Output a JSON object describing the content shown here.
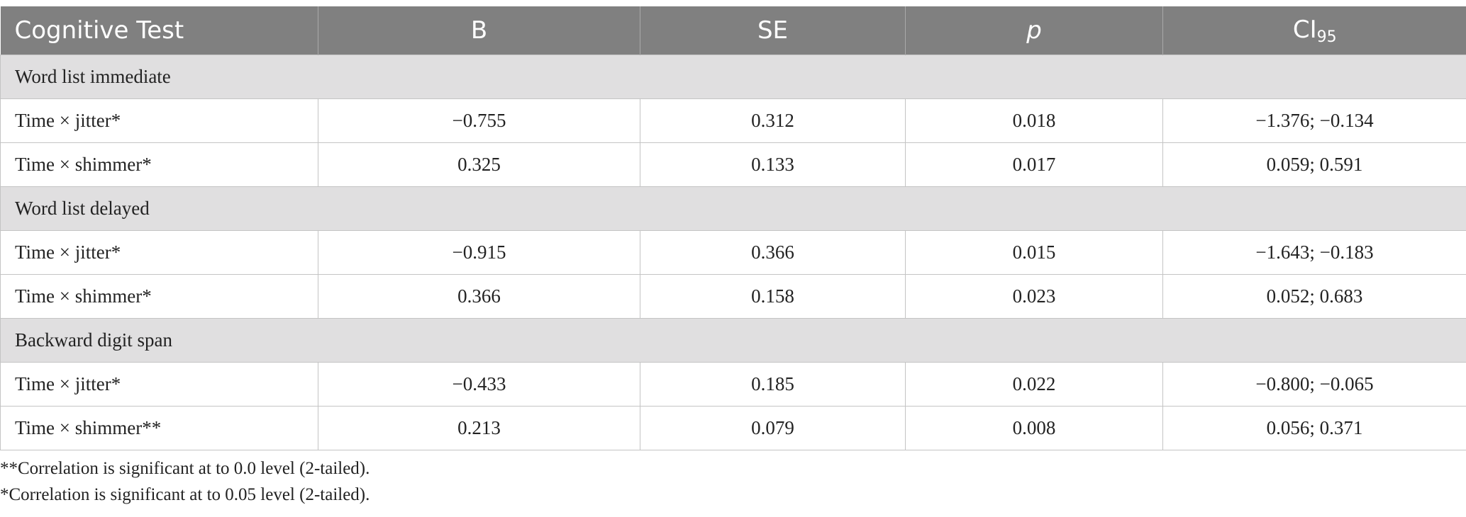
{
  "table": {
    "header": [
      "Cognitive Test",
      "B",
      "SE",
      "p",
      {
        "text": "CI",
        "sub": "95"
      }
    ],
    "groups": [
      {
        "title": "Word list immediate",
        "rows": [
          [
            "Time × jitter*",
            "−0.755",
            "0.312",
            "0.018",
            "−1.376; −0.134"
          ],
          [
            "Time × shimmer*",
            "0.325",
            "0.133",
            "0.017",
            "0.059; 0.591"
          ]
        ]
      },
      {
        "title": "Word list delayed",
        "rows": [
          [
            "Time × jitter*",
            "−0.915",
            "0.366",
            "0.015",
            "−1.643; −0.183"
          ],
          [
            "Time × shimmer*",
            "0.366",
            "0.158",
            "0.023",
            "0.052; 0.683"
          ]
        ]
      },
      {
        "title": "Backward digit span",
        "rows": [
          [
            "Time × jitter*",
            "−0.433",
            "0.185",
            "0.022",
            "−0.800; −0.065"
          ],
          [
            "Time × shimmer**",
            "0.213",
            "0.079",
            "0.008",
            "0.056; 0.371"
          ]
        ]
      }
    ]
  },
  "footnotes": [
    "**Correlation is significant at to 0.0 level (2-tailed).",
    "*Correlation is significant at to 0.05 level (2-tailed)."
  ]
}
